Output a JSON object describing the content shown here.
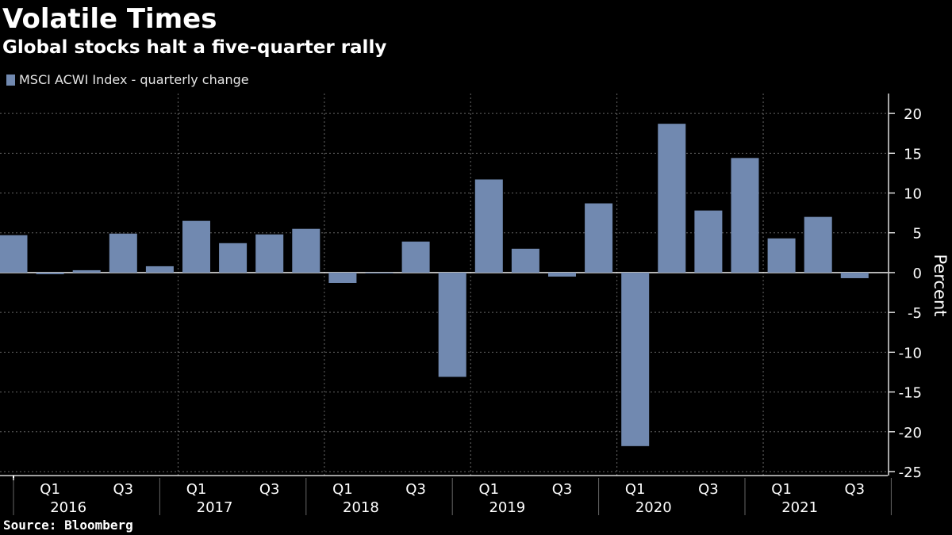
{
  "header": {
    "title": "Volatile Times",
    "subtitle": "Global stocks halt a five-quarter rally"
  },
  "footer": {
    "source": "Source: Bloomberg"
  },
  "colors": {
    "bar": "#7189b0",
    "background": "#000000",
    "grid": "#666666",
    "text": "#ffffff"
  },
  "chart_data": {
    "type": "bar",
    "title": "Volatile Times",
    "subtitle": "Global stocks halt a five-quarter rally",
    "ylabel": "Percent",
    "xlabel": "",
    "ylim": [
      -25.5,
      22.5
    ],
    "yticks": [
      20,
      15,
      10,
      5,
      0,
      -5,
      -10,
      -15,
      -20,
      -25
    ],
    "y_axis_position": "right",
    "grid": true,
    "legend_position": "top-left",
    "series": [
      {
        "name": "MSCI ACWI Index - quarterly change",
        "values": [
          4.7,
          -0.2,
          0.3,
          4.9,
          0.8,
          6.5,
          3.7,
          4.8,
          5.5,
          -1.3,
          -0.1,
          3.9,
          -13.1,
          11.7,
          3.0,
          -0.5,
          8.7,
          -21.8,
          18.7,
          7.8,
          14.4,
          4.3,
          7.0,
          -0.7
        ]
      }
    ],
    "categories": [
      "Q4 2015",
      "Q1 2016",
      "Q2 2016",
      "Q3 2016",
      "Q4 2016",
      "Q1 2017",
      "Q2 2017",
      "Q3 2017",
      "Q4 2017",
      "Q1 2018",
      "Q2 2018",
      "Q3 2018",
      "Q4 2018",
      "Q1 2019",
      "Q2 2019",
      "Q3 2019",
      "Q4 2019",
      "Q1 2020",
      "Q2 2020",
      "Q3 2020",
      "Q4 2020",
      "Q1 2021",
      "Q2 2021",
      "Q3 2021"
    ],
    "quarter_labels": [
      "",
      "Q1",
      "",
      "Q3",
      "",
      "Q1",
      "",
      "Q3",
      "",
      "Q1",
      "",
      "Q3",
      "",
      "Q1",
      "",
      "Q3",
      "",
      "Q1",
      "",
      "Q3",
      "",
      "Q1",
      "",
      "Q3"
    ],
    "years": [
      "2016",
      "2017",
      "2018",
      "2019",
      "2020",
      "2021"
    ]
  }
}
